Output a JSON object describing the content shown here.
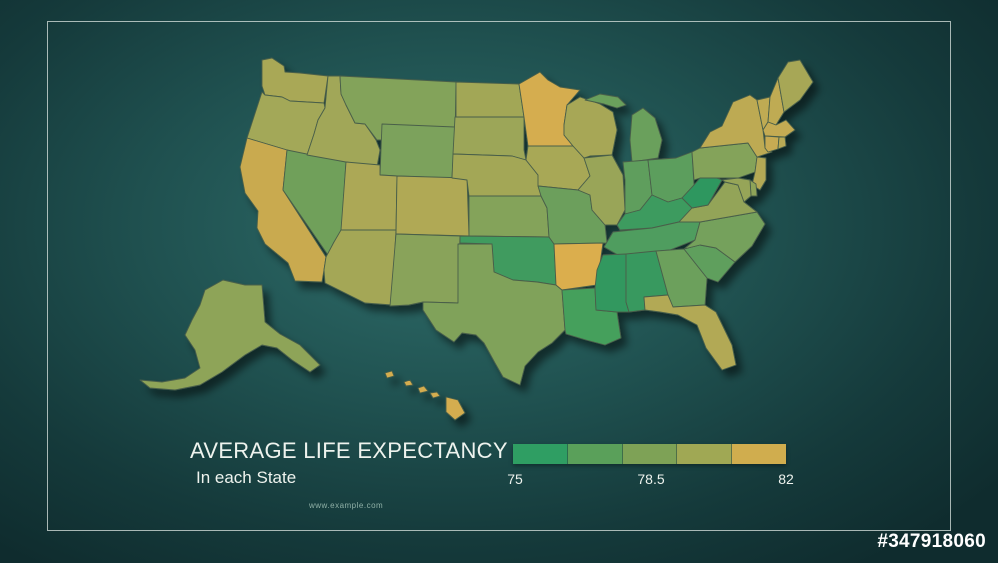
{
  "legend": {
    "title": "AVERAGE LIFE EXPECTANCY",
    "subtitle": "In each State",
    "ticks": [
      "75",
      "78.5",
      "82"
    ],
    "scale_colors": [
      "#2f9e63",
      "#5aa05a",
      "#7ea256",
      "#a0a854",
      "#d0ad4e"
    ]
  },
  "url": "www.example.com",
  "stock_id": "#347918060",
  "colors": {
    "background": "#1f504f",
    "frame": "#dce6e1",
    "state_border": "#4a5f4a"
  },
  "map_data": {
    "type": "choropleth",
    "scale": {
      "min": 75,
      "mid": 78.5,
      "max": 82
    },
    "states": [
      {
        "code": "WA",
        "color": "#a9a857"
      },
      {
        "code": "OR",
        "color": "#a3a858"
      },
      {
        "code": "CA",
        "color": "#c9aa50"
      },
      {
        "code": "NV",
        "color": "#6fa05a"
      },
      {
        "code": "ID",
        "color": "#a1a758"
      },
      {
        "code": "MT",
        "color": "#83a35a"
      },
      {
        "code": "WY",
        "color": "#7ba25b"
      },
      {
        "code": "UT",
        "color": "#aca856"
      },
      {
        "code": "AZ",
        "color": "#a4a757"
      },
      {
        "code": "CO",
        "color": "#b0a955"
      },
      {
        "code": "NM",
        "color": "#89a35a"
      },
      {
        "code": "ND",
        "color": "#a2a757"
      },
      {
        "code": "SD",
        "color": "#9ca658"
      },
      {
        "code": "NE",
        "color": "#a3a757"
      },
      {
        "code": "KS",
        "color": "#84a35a"
      },
      {
        "code": "OK",
        "color": "#3f9b5f"
      },
      {
        "code": "TX",
        "color": "#80a25a"
      },
      {
        "code": "MN",
        "color": "#d5ad4f"
      },
      {
        "code": "IA",
        "color": "#a8a856"
      },
      {
        "code": "MO",
        "color": "#6c9f5c"
      },
      {
        "code": "AR",
        "color": "#dbae4e"
      },
      {
        "code": "LA",
        "color": "#45a05c"
      },
      {
        "code": "WI",
        "color": "#a7a757"
      },
      {
        "code": "IL",
        "color": "#99a558"
      },
      {
        "code": "MI",
        "color": "#6aa05c"
      },
      {
        "code": "IN",
        "color": "#5f9e5d"
      },
      {
        "code": "OH",
        "color": "#5c9e5d"
      },
      {
        "code": "KY",
        "color": "#3c9b5f"
      },
      {
        "code": "TN",
        "color": "#4f9d5e"
      },
      {
        "code": "MS",
        "color": "#33985f"
      },
      {
        "code": "AL",
        "color": "#37995f"
      },
      {
        "code": "GA",
        "color": "#6ca05c"
      },
      {
        "code": "FL",
        "color": "#b2a955"
      },
      {
        "code": "SC",
        "color": "#5f9f5d"
      },
      {
        "code": "NC",
        "color": "#75a15b"
      },
      {
        "code": "VA",
        "color": "#93a459"
      },
      {
        "code": "WV",
        "color": "#2e975f"
      },
      {
        "code": "PA",
        "color": "#84a35a"
      },
      {
        "code": "NY",
        "color": "#bdaa53"
      },
      {
        "code": "VT",
        "color": "#bfab53"
      },
      {
        "code": "NH",
        "color": "#bfab53"
      },
      {
        "code": "ME",
        "color": "#a7a757"
      },
      {
        "code": "MA",
        "color": "#c4ab52"
      },
      {
        "code": "CT",
        "color": "#c7ab52"
      },
      {
        "code": "RI",
        "color": "#b9aa54"
      },
      {
        "code": "NJ",
        "color": "#b3a955"
      },
      {
        "code": "DE",
        "color": "#8ea459"
      },
      {
        "code": "MD",
        "color": "#96a558"
      },
      {
        "code": "AK",
        "color": "#8ea459"
      },
      {
        "code": "HI",
        "color": "#d4ad4f"
      }
    ]
  }
}
